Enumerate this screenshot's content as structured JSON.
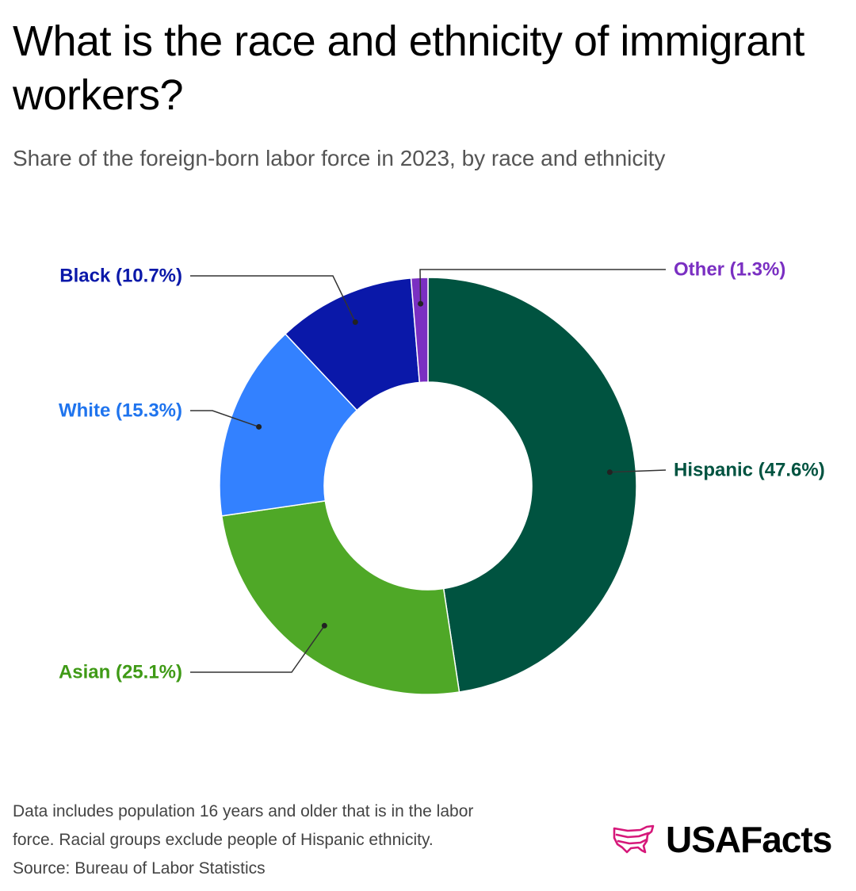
{
  "header": {
    "title": "What is the race and ethnicity of immigrant workers?",
    "subtitle": "Share of the foreign-born labor force in 2023, by race and ethnicity"
  },
  "chart_data": {
    "type": "pie",
    "donut": true,
    "slices": [
      {
        "name": "Hispanic",
        "value": 47.6,
        "label": "Hispanic (47.6%)",
        "color": "#005340"
      },
      {
        "name": "Asian",
        "value": 25.1,
        "label": "Asian (25.1%)",
        "color": "#4fa827"
      },
      {
        "name": "White",
        "value": 15.3,
        "label": "White (15.3%)",
        "color": "#3381ff"
      },
      {
        "name": "Black",
        "value": 10.7,
        "label": "Black (10.7%)",
        "color": "#0a18a9"
      },
      {
        "name": "Other",
        "value": 1.3,
        "label": "Other (1.3%)",
        "color": "#7a2fc2"
      }
    ],
    "label_colors": {
      "Hispanic": "#005340",
      "Asian": "#3f9a16",
      "White": "#1f74ee",
      "Black": "#0a18a9",
      "Other": "#7a2fc2"
    }
  },
  "footer": {
    "note_line1": "Data includes population 16 years and older that is in the labor",
    "note_line2": "force. Racial groups exclude people of Hispanic ethnicity.",
    "source": "Source: Bureau of Labor Statistics",
    "logo_text": "USAFacts",
    "logo_icon": "usa-map-icon",
    "logo_color": "#d6187a"
  }
}
